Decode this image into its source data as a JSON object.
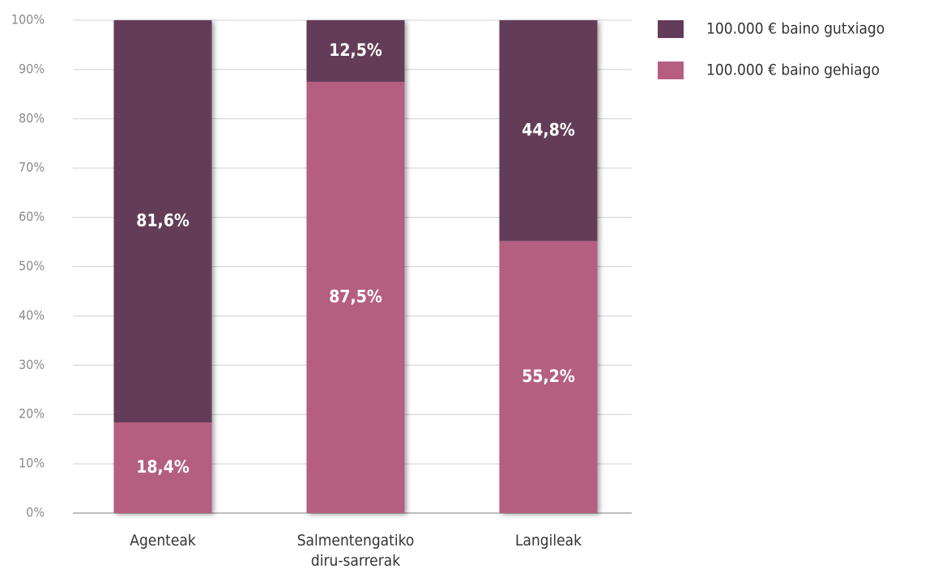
{
  "chart_data": {
    "type": "stacked_bar",
    "categories": [
      "Agenteak",
      "Salmentengatiko diru-sarrerak",
      "Langileak"
    ],
    "series": [
      {
        "name": "100.000 € baino gutxiago",
        "color": "#633c59",
        "values": [
          81.6,
          12.5,
          44.8
        ],
        "value_labels": [
          "81,6%",
          "12,5%",
          "44,8%"
        ]
      },
      {
        "name": "100.000 € baino gehiago",
        "color": "#b55e80",
        "values": [
          18.4,
          87.5,
          55.2
        ],
        "value_labels": [
          "18,4%",
          "87,5%",
          "55,2%"
        ]
      }
    ],
    "ylim": [
      0,
      100
    ],
    "yticks": [
      {
        "value": 0,
        "label": "0%"
      },
      {
        "value": 10,
        "label": "10%"
      },
      {
        "value": 20,
        "label": "20%"
      },
      {
        "value": 30,
        "label": "30%"
      },
      {
        "value": 40,
        "label": "40%"
      },
      {
        "value": 50,
        "label": "50%"
      },
      {
        "value": 60,
        "label": "60%"
      },
      {
        "value": 70,
        "label": "70%"
      },
      {
        "value": 80,
        "label": "80%"
      },
      {
        "value": 90,
        "label": "90%"
      },
      {
        "value": 100,
        "label": "100%"
      }
    ],
    "grid": true,
    "legend": "right"
  }
}
